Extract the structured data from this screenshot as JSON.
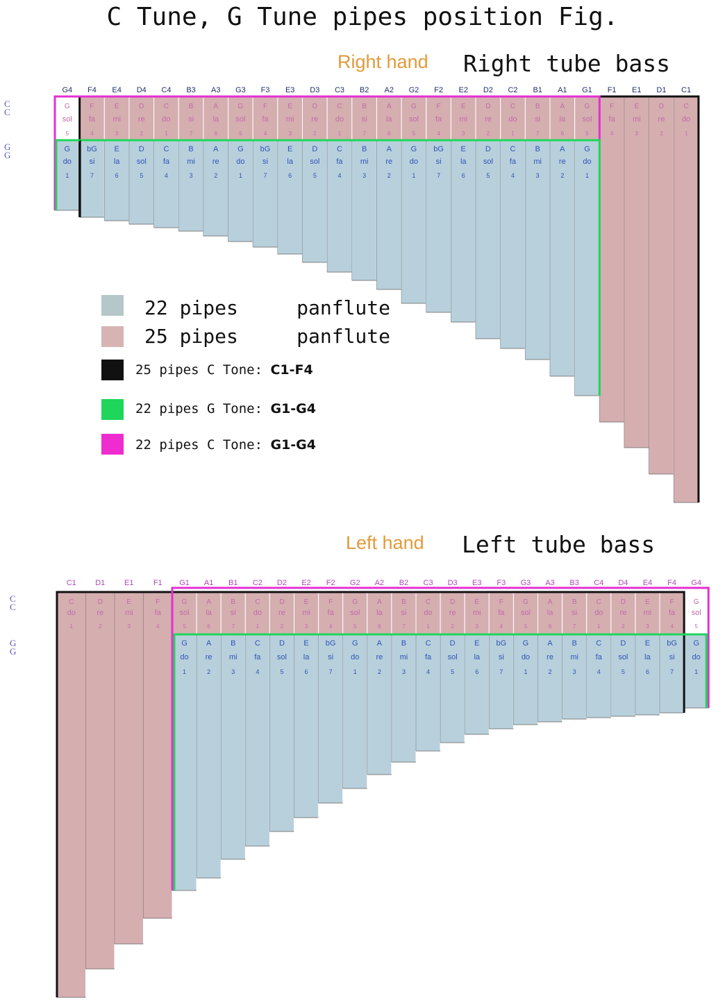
{
  "title": "C Tune, G Tune pipes position Fig.",
  "right": {
    "hand_label": "Right hand",
    "bass_label": "Right tube bass",
    "row_labels": {
      "c": [
        "C",
        "C"
      ],
      "g": [
        "G",
        "G"
      ]
    },
    "top_notes": [
      "G4",
      "F4",
      "E4",
      "D4",
      "C4",
      "B3",
      "A3",
      "G3",
      "F3",
      "E3",
      "D3",
      "C3",
      "B2",
      "A2",
      "G2",
      "F2",
      "E2",
      "D2",
      "C2",
      "B1",
      "A1",
      "G1",
      "F1",
      "E1",
      "D1",
      "C1"
    ],
    "c_letters": [
      "G",
      "F",
      "E",
      "D",
      "C",
      "B",
      "A",
      "G",
      "F",
      "E",
      "D",
      "C",
      "B",
      "A",
      "G",
      "F",
      "E",
      "D",
      "C",
      "B",
      "A",
      "G",
      "F",
      "E",
      "D",
      "C"
    ],
    "c_syllables": [
      "sol",
      "fa",
      "mi",
      "re",
      "do",
      "si",
      "la",
      "sol",
      "fa",
      "mi",
      "re",
      "do",
      "si",
      "la",
      "sol",
      "fa",
      "mi",
      "re",
      "do",
      "si",
      "la",
      "sol",
      "fa",
      "mi",
      "re",
      "do"
    ],
    "c_digits": [
      "5",
      "4",
      "3",
      "2",
      "1",
      "7",
      "6",
      "5",
      "4",
      "3",
      "2",
      "1",
      "7",
      "6",
      "5",
      "4",
      "3",
      "2",
      "1",
      "7",
      "6",
      "5",
      "4",
      "3",
      "2",
      "1"
    ],
    "g_letters": [
      "G",
      "bG",
      "E",
      "D",
      "C",
      "B",
      "A",
      "G",
      "bG",
      "E",
      "D",
      "C",
      "B",
      "A",
      "G",
      "bG",
      "E",
      "D",
      "C",
      "B",
      "A",
      "G"
    ],
    "g_syllables": [
      "do",
      "si",
      "la",
      "sol",
      "fa",
      "mi",
      "re",
      "do",
      "si",
      "la",
      "sol",
      "fa",
      "mi",
      "re",
      "do",
      "si",
      "la",
      "sol",
      "fa",
      "mi",
      "re",
      "do"
    ],
    "g_digits": [
      "1",
      "7",
      "6",
      "5",
      "4",
      "3",
      "2",
      "1",
      "7",
      "6",
      "5",
      "4",
      "3",
      "2",
      "1",
      "7",
      "6",
      "5",
      "4",
      "3",
      "2",
      "1"
    ]
  },
  "left": {
    "hand_label": "Left hand",
    "bass_label": "Left tube bass",
    "row_labels": {
      "c": [
        "C",
        "C"
      ],
      "g": [
        "G",
        "G"
      ]
    },
    "top_notes": [
      "C1",
      "D1",
      "E1",
      "F1",
      "G1",
      "A1",
      "B1",
      "C2",
      "D2",
      "E2",
      "F2",
      "G2",
      "A2",
      "B2",
      "C3",
      "D3",
      "E3",
      "F3",
      "G3",
      "A3",
      "B3",
      "C4",
      "D4",
      "E4",
      "F4",
      "G4"
    ],
    "c_letters": [
      "C",
      "D",
      "E",
      "F",
      "G",
      "A",
      "B",
      "C",
      "D",
      "E",
      "F",
      "G",
      "A",
      "B",
      "C",
      "D",
      "E",
      "F",
      "G",
      "A",
      "B",
      "C",
      "D",
      "E",
      "F",
      "G"
    ],
    "c_syllables": [
      "do",
      "re",
      "mi",
      "fa",
      "sol",
      "la",
      "si",
      "do",
      "re",
      "mi",
      "fa",
      "sol",
      "la",
      "si",
      "do",
      "re",
      "mi",
      "fa",
      "sol",
      "la",
      "si",
      "do",
      "re",
      "mi",
      "fa",
      "sol"
    ],
    "c_digits": [
      "1",
      "2",
      "3",
      "4",
      "5",
      "6",
      "7",
      "1",
      "2",
      "3",
      "4",
      "5",
      "6",
      "7",
      "1",
      "2",
      "3",
      "4",
      "5",
      "6",
      "7",
      "1",
      "2",
      "3",
      "4",
      "5"
    ],
    "g_letters": [
      "G",
      "A",
      "B",
      "C",
      "D",
      "E",
      "bG",
      "G",
      "A",
      "B",
      "C",
      "D",
      "E",
      "bG",
      "G",
      "A",
      "B",
      "C",
      "D",
      "E",
      "bG",
      "G"
    ],
    "g_syllables": [
      "do",
      "re",
      "mi",
      "fa",
      "sol",
      "la",
      "si",
      "do",
      "re",
      "mi",
      "fa",
      "sol",
      "la",
      "si",
      "do",
      "re",
      "mi",
      "fa",
      "sol",
      "la",
      "si",
      "do"
    ],
    "g_digits": [
      "1",
      "2",
      "3",
      "4",
      "5",
      "6",
      "7",
      "1",
      "2",
      "3",
      "4",
      "5",
      "6",
      "7",
      "1",
      "2",
      "3",
      "4",
      "5",
      "6",
      "7",
      "1"
    ]
  },
  "legend": [
    {
      "swatch": "#b6c7c9",
      "text": "22 pipes     panflute",
      "bold": ""
    },
    {
      "swatch": "#d8b3b4",
      "text": "25 pipes     panflute",
      "bold": ""
    },
    {
      "swatch": "#111111",
      "text": "25 pipes C Tone:",
      "bold": "C1-F4"
    },
    {
      "swatch": "#1ed65a",
      "text": "22 pipes G Tone:",
      "bold": "G1-G4"
    },
    {
      "swatch": "#ee2ccf",
      "text": "22 pipes C Tone:",
      "bold": "G1-G4"
    }
  ],
  "colors": {
    "blue_pipe": "#b8d0dc",
    "pink_pipe": "#d5aeb0",
    "black_frame": "#111111",
    "green_frame": "#1ed65a",
    "magenta_frame": "#e42fd2",
    "top_label": "#1f2d6b",
    "top_label_left": "#b043b8",
    "c_row_text": "#c26aa8",
    "g_row_text": "#2f52b8",
    "hand_label": "#e29a3b"
  }
}
